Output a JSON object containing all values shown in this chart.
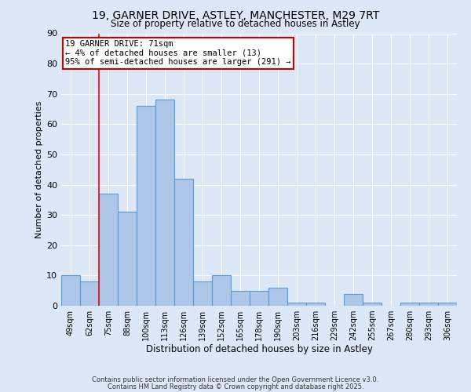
{
  "title_line1": "19, GARNER DRIVE, ASTLEY, MANCHESTER, M29 7RT",
  "title_line2": "Size of property relative to detached houses in Astley",
  "xlabel": "Distribution of detached houses by size in Astley",
  "ylabel": "Number of detached properties",
  "categories": [
    "49sqm",
    "62sqm",
    "75sqm",
    "88sqm",
    "100sqm",
    "113sqm",
    "126sqm",
    "139sqm",
    "152sqm",
    "165sqm",
    "178sqm",
    "190sqm",
    "203sqm",
    "216sqm",
    "229sqm",
    "242sqm",
    "255sqm",
    "267sqm",
    "280sqm",
    "293sqm",
    "306sqm"
  ],
  "values": [
    10,
    8,
    37,
    31,
    66,
    68,
    42,
    8,
    10,
    5,
    5,
    6,
    1,
    1,
    0,
    4,
    1,
    0,
    1,
    1,
    1
  ],
  "bar_color": "#aec6e8",
  "bar_edge_color": "#5b9bd5",
  "background_color": "#dce8f8",
  "grid_color": "#ffffff",
  "red_line_x": 1.5,
  "annotation_text": "19 GARNER DRIVE: 71sqm\n← 4% of detached houses are smaller (13)\n95% of semi-detached houses are larger (291) →",
  "annotation_box_color": "#ffffff",
  "annotation_box_edge": "#cc0000",
  "ylim": [
    0,
    90
  ],
  "yticks": [
    0,
    10,
    20,
    30,
    40,
    50,
    60,
    70,
    80,
    90
  ],
  "footer_line1": "Contains HM Land Registry data © Crown copyright and database right 2025.",
  "footer_line2": "Contains public sector information licensed under the Open Government Licence v3.0."
}
